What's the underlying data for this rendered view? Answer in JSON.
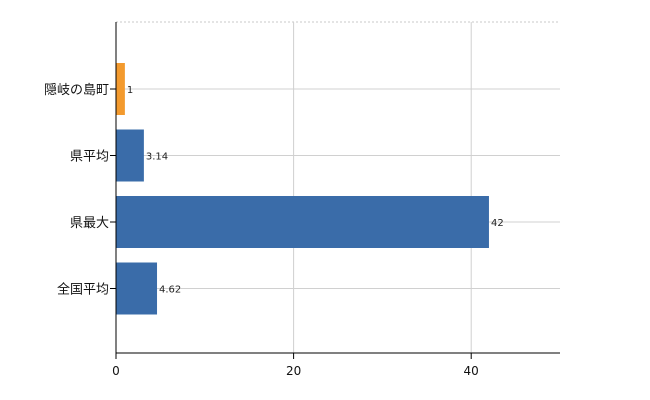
{
  "chart_data": {
    "type": "bar",
    "orientation": "horizontal",
    "categories": [
      "隠岐の島町",
      "県平均",
      "県最大",
      "全国平均"
    ],
    "values": [
      1,
      3.14,
      42,
      4.62
    ],
    "data_labels": [
      "1",
      "3.14",
      "42",
      "4.62"
    ],
    "bar_colors": [
      "#f39a2e",
      "#3a6ca9",
      "#3a6ca9",
      "#3a6ca9"
    ],
    "xlim": [
      0,
      50
    ],
    "x_ticks": [
      0,
      20,
      40
    ],
    "x_tick_labels": [
      "0",
      "20",
      "40"
    ],
    "title": "",
    "xlabel": "",
    "ylabel": "",
    "grid": true,
    "legend": "none"
  }
}
